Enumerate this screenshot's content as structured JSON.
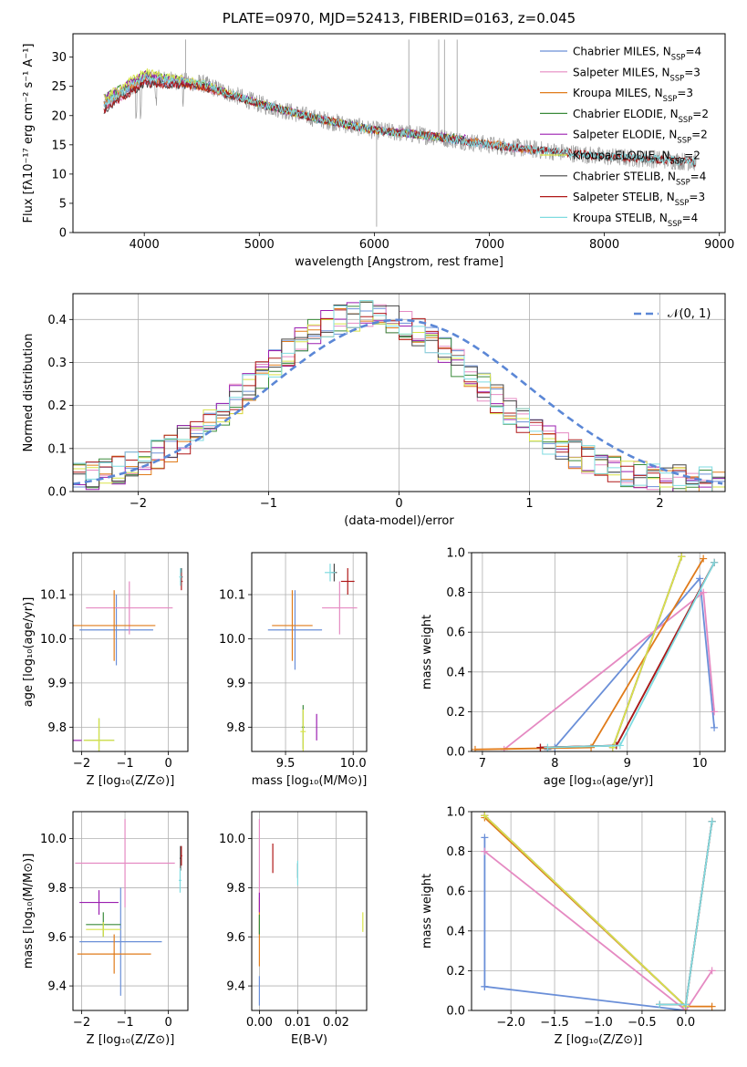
{
  "figure": {
    "title": "PLATE=0970, MJD=52413, FIBERID=0163, z=0.045"
  },
  "colors": {
    "Chabrier MILES": "#6a8fd8",
    "Salpeter MILES": "#e58ac2",
    "Kroupa MILES": "#e07b1a",
    "Chabrier ELODIE": "#3a8a3a",
    "Salpeter ELODIE": "#9b1fb0",
    "Kroupa ELODIE": "#d9e44a",
    "Chabrier STELIB": "#444444",
    "Salpeter STELIB": "#b01818",
    "Kroupa STELIB": "#7fdbe0",
    "data": "#9a9a9a",
    "normal": "#5b87d6"
  },
  "chart_data": [
    {
      "id": "spectrum",
      "type": "line",
      "xlabel": "wavelength [Angstrom, rest frame]",
      "ylabel": "Flux [fλ10⁻¹⁷ erg cm⁻² s⁻¹ A⁻¹]",
      "xlim": [
        3380,
        9050
      ],
      "ylim": [
        0,
        34
      ],
      "xticks": [
        4000,
        5000,
        6000,
        7000,
        8000,
        9000
      ],
      "yticks": [
        0,
        5,
        10,
        15,
        20,
        25,
        30
      ],
      "legend_position": "top-right",
      "legend": [
        "Chabrier MILES, N_SSP=4",
        "Salpeter MILES, N_SSP=3",
        "Kroupa MILES, N_SSP=3",
        "Chabrier ELODIE, N_SSP=2",
        "Salpeter ELODIE, N_SSP=2",
        "Kroupa ELODIE, N_SSP=2",
        "Chabrier STELIB, N_SSP=4",
        "Salpeter STELIB, N_SSP=3",
        "Kroupa STELIB, N_SSP=4"
      ],
      "series": [
        {
          "name": "Chabrier MILES, N_SSP=4",
          "x": [
            3650,
            4000,
            4500,
            5000,
            5500,
            6000,
            6500,
            7000,
            7400
          ],
          "y": [
            22,
            26,
            25,
            22,
            19.5,
            17.5,
            16.5,
            15,
            14
          ]
        },
        {
          "name": "Salpeter MILES, N_SSP=3",
          "x": [
            3650,
            4000,
            4500,
            5000,
            5500,
            6000,
            6500,
            7000,
            7400
          ],
          "y": [
            21,
            26,
            25,
            22,
            19.5,
            17.5,
            16.5,
            15,
            14
          ]
        },
        {
          "name": "Kroupa MILES, N_SSP=3",
          "x": [
            3650,
            4000,
            4500,
            5000,
            5500,
            6000,
            6500,
            7000,
            7400
          ],
          "y": [
            22,
            26.5,
            25,
            22,
            19.5,
            17.5,
            16.5,
            15.2,
            14
          ]
        },
        {
          "name": "Chabrier ELODIE, N_SSP=2",
          "x": [
            3650,
            4000,
            4500,
            5000,
            5500,
            6000,
            6500,
            6800
          ],
          "y": [
            23,
            27,
            25.5,
            22,
            19.5,
            17.5,
            16.5,
            16
          ]
        },
        {
          "name": "Salpeter ELODIE, N_SSP=2",
          "x": [
            3650,
            4000,
            4500,
            5000,
            5500,
            6000,
            6500,
            6800
          ],
          "y": [
            23,
            27,
            25.5,
            22,
            19.5,
            17.5,
            16.5,
            16
          ]
        },
        {
          "name": "Kroupa ELODIE, N_SSP=2",
          "x": [
            3650,
            4000,
            4500,
            5000,
            5500,
            6000,
            6500,
            6800
          ],
          "y": [
            23,
            27.5,
            25.5,
            22,
            19.5,
            17.5,
            16.5,
            16
          ]
        },
        {
          "name": "Chabrier STELIB, N_SSP=4",
          "x": [
            3650,
            4000,
            4500,
            5000,
            5500,
            6000,
            6500,
            7000,
            7500,
            8000,
            8500,
            8800
          ],
          "y": [
            21,
            25.5,
            25,
            22,
            19.5,
            17.5,
            16.5,
            15,
            14,
            13,
            12.5,
            12
          ]
        },
        {
          "name": "Salpeter STELIB, N_SSP=3",
          "x": [
            3650,
            4000,
            4500,
            5000,
            5500,
            6000,
            6500,
            7000,
            7500,
            8000,
            8500,
            8800
          ],
          "y": [
            21,
            25.5,
            25,
            22,
            19.5,
            17.5,
            16.5,
            15,
            14,
            13,
            12.5,
            12
          ]
        },
        {
          "name": "Kroupa STELIB, N_SSP=4",
          "x": [
            3650,
            4000,
            4500,
            5000,
            5500,
            6000,
            6500,
            7000,
            7500,
            8000,
            8500,
            8800
          ],
          "y": [
            22,
            26.5,
            25.5,
            22,
            19.5,
            17.5,
            16.5,
            15,
            14,
            13,
            12.5,
            12
          ]
        }
      ]
    },
    {
      "id": "residuals",
      "type": "line",
      "xlabel": "(data-model)/error",
      "ylabel": "Normed distribution",
      "xlim": [
        -2.5,
        2.5
      ],
      "ylim": [
        0,
        0.46
      ],
      "xticks": [
        -2,
        -1,
        0,
        1,
        2
      ],
      "yticks": [
        0.0,
        0.1,
        0.2,
        0.3,
        0.4
      ],
      "grid": true,
      "legend_position": "top-right",
      "legend": [
        "𝒩(0, 1)"
      ],
      "series": [
        {
          "name": "𝒩(0, 1)",
          "function": "gaussian",
          "mean": 0,
          "sigma": 1
        }
      ]
    },
    {
      "id": "age-vs-Z",
      "type": "scatter",
      "xlabel": "Z [log₁₀(Z/Z⊙)]",
      "ylabel": "age  [log₁₀(age/yr)]",
      "xlim": [
        -2.2,
        0.45
      ],
      "ylim": [
        9.745,
        10.195
      ],
      "xticks": [
        -2,
        -1,
        0
      ],
      "yticks": [
        9.8,
        9.9,
        10.0,
        10.1
      ],
      "grid": true,
      "points": [
        {
          "name": "Chabrier MILES",
          "x": -1.2,
          "y": 10.02,
          "xerr": 0.85,
          "yerr": 0.08
        },
        {
          "name": "Salpeter MILES",
          "x": -0.9,
          "y": 10.07,
          "xerr": 1.0,
          "yerr": 0.06
        },
        {
          "name": "Kroupa MILES",
          "x": -1.25,
          "y": 10.03,
          "xerr": 0.95,
          "yerr": 0.08
        },
        {
          "name": "Chabrier ELODIE",
          "x": -1.6,
          "y": 9.77,
          "xerr": 0.35,
          "yerr": 0.05
        },
        {
          "name": "Salpeter ELODIE",
          "x": -2.1,
          "y": 9.77,
          "xerr": 0.1,
          "yerr": 0.0
        },
        {
          "name": "Kroupa ELODIE",
          "x": -1.6,
          "y": 9.77,
          "xerr": 0.35,
          "yerr": 0.05
        },
        {
          "name": "Chabrier STELIB",
          "x": 0.3,
          "y": 10.14,
          "xerr": 0.03,
          "yerr": 0.02
        },
        {
          "name": "Salpeter STELIB",
          "x": 0.3,
          "y": 10.13,
          "xerr": 0.03,
          "yerr": 0.02
        },
        {
          "name": "Kroupa STELIB",
          "x": 0.28,
          "y": 10.14,
          "xerr": 0.03,
          "yerr": 0.02
        }
      ]
    },
    {
      "id": "age-vs-mass",
      "type": "scatter",
      "xlabel": "mass [log₁₀(M/M⊙)]",
      "ylabel": "",
      "xlim": [
        9.25,
        10.1
      ],
      "ylim": [
        9.745,
        10.195
      ],
      "xticks": [
        9.5,
        10.0
      ],
      "yticks": [
        9.8,
        9.9,
        10.0,
        10.1
      ],
      "grid": true,
      "points": [
        {
          "name": "Chabrier MILES",
          "x": 9.57,
          "y": 10.02,
          "xerr": 0.2,
          "yerr": 0.09
        },
        {
          "name": "Salpeter MILES",
          "x": 9.9,
          "y": 10.07,
          "xerr": 0.13,
          "yerr": 0.06
        },
        {
          "name": "Kroupa MILES",
          "x": 9.55,
          "y": 10.03,
          "xerr": 0.15,
          "yerr": 0.08
        },
        {
          "name": "Chabrier ELODIE",
          "x": 9.63,
          "y": 9.8,
          "xerr": 0.01,
          "yerr": 0.05
        },
        {
          "name": "Salpeter ELODIE",
          "x": 9.73,
          "y": 9.8,
          "xerr": 0.0,
          "yerr": 0.03
        },
        {
          "name": "Kroupa ELODIE",
          "x": 9.63,
          "y": 9.79,
          "xerr": 0.02,
          "yerr": 0.05
        },
        {
          "name": "Chabrier STELIB",
          "x": 9.86,
          "y": 10.15,
          "xerr": 0.02,
          "yerr": 0.02
        },
        {
          "name": "Salpeter STELIB",
          "x": 9.96,
          "y": 10.13,
          "xerr": 0.05,
          "yerr": 0.03
        },
        {
          "name": "Kroupa STELIB",
          "x": 9.83,
          "y": 10.15,
          "xerr": 0.04,
          "yerr": 0.02
        }
      ]
    },
    {
      "id": "weight-vs-age",
      "type": "line",
      "xlabel": "age  [log₁₀(age/yr)]",
      "ylabel": "mass weight",
      "xlim": [
        6.85,
        10.35
      ],
      "ylim": [
        0.0,
        1.0
      ],
      "xticks": [
        7,
        8,
        9,
        10
      ],
      "yticks": [
        0.0,
        0.2,
        0.4,
        0.6,
        0.8,
        1.0
      ],
      "grid": true,
      "series": [
        {
          "name": "Chabrier MILES",
          "x": [
            7.9,
            8.0,
            10.0,
            10.2
          ],
          "y": [
            0.01,
            0.02,
            0.87,
            0.12
          ]
        },
        {
          "name": "Salpeter MILES",
          "x": [
            7.3,
            10.05,
            10.2
          ],
          "y": [
            0.01,
            0.8,
            0.2
          ]
        },
        {
          "name": "Kroupa MILES",
          "x": [
            6.9,
            8.5,
            10.05
          ],
          "y": [
            0.01,
            0.02,
            0.97
          ]
        },
        {
          "name": "Chabrier ELODIE",
          "x": [
            8.8,
            9.75
          ],
          "y": [
            0.02,
            0.98
          ]
        },
        {
          "name": "Salpeter ELODIE",
          "x": [
            8.8,
            9.75
          ],
          "y": [
            0.02,
            0.98
          ]
        },
        {
          "name": "Kroupa ELODIE",
          "x": [
            8.8,
            9.75
          ],
          "y": [
            0.02,
            0.98
          ]
        },
        {
          "name": "Chabrier STELIB",
          "x": [
            7.8,
            8.85,
            10.2
          ],
          "y": [
            0.02,
            0.03,
            0.95
          ]
        },
        {
          "name": "Salpeter STELIB",
          "x": [
            7.8,
            8.85,
            10.2
          ],
          "y": [
            0.02,
            0.03,
            0.95
          ]
        },
        {
          "name": "Kroupa STELIB",
          "x": [
            7.9,
            8.9,
            10.2
          ],
          "y": [
            0.02,
            0.03,
            0.95
          ]
        }
      ]
    },
    {
      "id": "mass-vs-Z",
      "type": "scatter",
      "xlabel": "Z [log₁₀(Z/Z⊙)]",
      "ylabel": "mass [log₁₀(M/M⊙)]",
      "xlim": [
        -2.2,
        0.45
      ],
      "ylim": [
        9.3,
        10.11
      ],
      "xticks": [
        -2,
        -1,
        0
      ],
      "yticks": [
        9.4,
        9.6,
        9.8,
        10.0
      ],
      "grid": true,
      "points": [
        {
          "name": "Chabrier MILES",
          "x": -1.1,
          "y": 9.58,
          "xerr": 0.95,
          "yerr": 0.22
        },
        {
          "name": "Salpeter MILES",
          "x": -1.0,
          "y": 9.9,
          "xerr": 1.15,
          "yerr": 0.18
        },
        {
          "name": "Kroupa MILES",
          "x": -1.25,
          "y": 9.53,
          "xerr": 0.85,
          "yerr": 0.08
        },
        {
          "name": "Chabrier ELODIE",
          "x": -1.5,
          "y": 9.65,
          "xerr": 0.4,
          "yerr": 0.05
        },
        {
          "name": "Salpeter ELODIE",
          "x": -1.6,
          "y": 9.74,
          "xerr": 0.45,
          "yerr": 0.05
        },
        {
          "name": "Kroupa ELODIE",
          "x": -1.5,
          "y": 9.63,
          "xerr": 0.4,
          "yerr": 0.03
        },
        {
          "name": "Chabrier STELIB",
          "x": 0.28,
          "y": 9.92,
          "xerr": 0.02,
          "yerr": 0.05
        },
        {
          "name": "Salpeter STELIB",
          "x": 0.3,
          "y": 9.93,
          "xerr": 0.02,
          "yerr": 0.04
        },
        {
          "name": "Kroupa STELIB",
          "x": 0.27,
          "y": 9.83,
          "xerr": 0.03,
          "yerr": 0.05
        }
      ]
    },
    {
      "id": "mass-vs-ebv",
      "type": "scatter",
      "xlabel": "E(B-V)",
      "ylabel": "",
      "xlim": [
        -0.002,
        0.028
      ],
      "ylim": [
        9.3,
        10.11
      ],
      "xticks": [
        0.0,
        0.01,
        0.02
      ],
      "yticks": [
        9.4,
        9.6,
        9.8,
        10.0
      ],
      "grid": true,
      "points": [
        {
          "name": "Chabrier MILES",
          "x": 0.0,
          "y": 9.38,
          "xerr": 0.0,
          "yerr": 0.06
        },
        {
          "name": "Salpeter MILES",
          "x": 0.0,
          "y": 9.92,
          "xerr": 0.0,
          "yerr": 0.16
        },
        {
          "name": "Kroupa MILES",
          "x": 0.0,
          "y": 9.62,
          "xerr": 0.0,
          "yerr": 0.14
        },
        {
          "name": "Chabrier ELODIE",
          "x": 0.0,
          "y": 9.65,
          "xerr": 0.0,
          "yerr": 0.04
        },
        {
          "name": "Salpeter ELODIE",
          "x": 0.0,
          "y": 9.74,
          "xerr": 0.0,
          "yerr": 0.04
        },
        {
          "name": "Kroupa ELODIE",
          "x": 0.027,
          "y": 9.66,
          "xerr": 0.0,
          "yerr": 0.04
        },
        {
          "name": "Chabrier STELIB",
          "x": 0.01,
          "y": 9.87,
          "xerr": 0.0,
          "yerr": 0.03
        },
        {
          "name": "Salpeter STELIB",
          "x": 0.0035,
          "y": 9.92,
          "xerr": 0.0,
          "yerr": 0.06
        },
        {
          "name": "Kroupa STELIB",
          "x": 0.01,
          "y": 9.86,
          "xerr": 0.0,
          "yerr": 0.05
        }
      ]
    },
    {
      "id": "weight-vs-Z",
      "type": "line",
      "xlabel": "Z [log₁₀(Z/Z⊙)]",
      "ylabel": "mass weight",
      "xlim": [
        -2.45,
        0.45
      ],
      "ylim": [
        0.0,
        1.0
      ],
      "xticks": [
        -2.0,
        -1.5,
        -1.0,
        -0.5,
        0.0
      ],
      "yticks": [
        0.0,
        0.2,
        0.4,
        0.6,
        0.8,
        1.0
      ],
      "grid": true,
      "series": [
        {
          "name": "Chabrier MILES",
          "x": [
            -2.3,
            -2.3,
            -2.3,
            0.0
          ],
          "y": [
            0.87,
            0.12,
            0.12,
            0.0
          ]
        },
        {
          "name": "Salpeter MILES",
          "x": [
            -2.3,
            0.0,
            0.3
          ],
          "y": [
            0.8,
            0.0,
            0.2
          ]
        },
        {
          "name": "Kroupa MILES",
          "x": [
            -2.3,
            0.0,
            0.3
          ],
          "y": [
            0.97,
            0.02,
            0.02
          ]
        },
        {
          "name": "Chabrier ELODIE",
          "x": [
            -2.3,
            0.0
          ],
          "y": [
            0.98,
            0.02
          ]
        },
        {
          "name": "Salpeter ELODIE",
          "x": [
            -2.3,
            0.0
          ],
          "y": [
            0.98,
            0.02
          ]
        },
        {
          "name": "Kroupa ELODIE",
          "x": [
            -2.3,
            0.0
          ],
          "y": [
            0.98,
            0.02
          ]
        },
        {
          "name": "Chabrier STELIB",
          "x": [
            -0.3,
            0.0,
            0.3
          ],
          "y": [
            0.03,
            0.03,
            0.95
          ]
        },
        {
          "name": "Salpeter STELIB",
          "x": [
            -0.3,
            0.0,
            0.3
          ],
          "y": [
            0.03,
            0.03,
            0.95
          ]
        },
        {
          "name": "Kroupa STELIB",
          "x": [
            -0.3,
            0.0,
            0.3
          ],
          "y": [
            0.03,
            0.03,
            0.95
          ]
        }
      ]
    }
  ]
}
